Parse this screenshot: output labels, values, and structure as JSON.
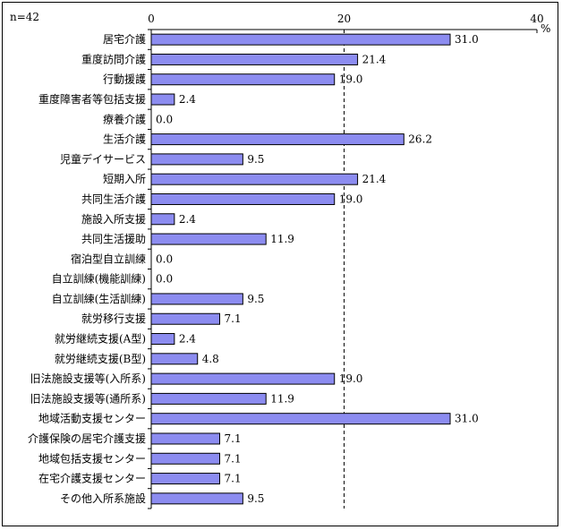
{
  "chart_data": {
    "type": "bar",
    "orientation": "horizontal",
    "note": "n=42",
    "unit": "%",
    "xlim": [
      0,
      40
    ],
    "xticks": [
      0,
      20,
      40
    ],
    "reference_line": 20,
    "categories": [
      "居宅介護",
      "重度訪問介護",
      "行動援護",
      "重度障害者等包括支援",
      "療養介護",
      "生活介護",
      "児童デイサービス",
      "短期入所",
      "共同生活介護",
      "施設入所支援",
      "共同生活援助",
      "宿泊型自立訓練",
      "自立訓練(機能訓練)",
      "自立訓練(生活訓練)",
      "就労移行支援",
      "就労継続支援(A型)",
      "就労継続支援(B型)",
      "旧法施設支援等(入所系)",
      "旧法施設支援等(通所系)",
      "地域活動支援センター",
      "介護保険の居宅介護支援",
      "地域包括支援センター",
      "在宅介護支援センター",
      "その他入所系施設"
    ],
    "values": [
      31.0,
      21.4,
      19.0,
      2.4,
      0.0,
      26.2,
      9.5,
      21.4,
      19.0,
      2.4,
      11.9,
      0.0,
      0.0,
      9.5,
      7.1,
      2.4,
      4.8,
      19.0,
      11.9,
      31.0,
      7.1,
      7.1,
      7.1,
      9.5
    ],
    "colors": {
      "bar": "#8c8cf0",
      "bar_stroke": "#000000"
    }
  }
}
